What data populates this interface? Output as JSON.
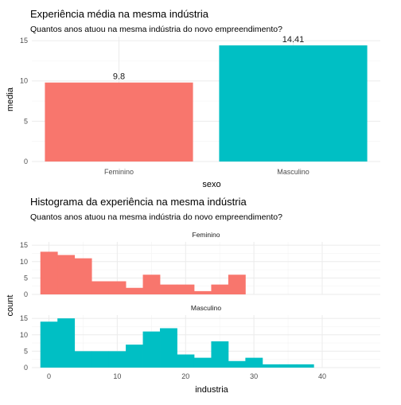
{
  "colors": {
    "feminino": "#F8766D",
    "masculino": "#00BFC4"
  },
  "chart_data": [
    {
      "type": "bar",
      "title": "Experiência média na mesma indústria",
      "subtitle": "Quantos anos atuou na mesma indústria do novo empreendimento?",
      "xlabel": "sexo",
      "ylabel": "media",
      "categories": [
        "Feminino",
        "Masculino"
      ],
      "values": [
        9.8,
        14.41
      ],
      "data_labels": [
        "9.8",
        "14.41"
      ],
      "ylim": [
        0,
        15.5
      ],
      "yticks": [
        0,
        5,
        10,
        15
      ],
      "ytick_labels": [
        "0",
        "5",
        "10",
        "15"
      ],
      "grid": true,
      "legend": "none"
    },
    {
      "type": "bar",
      "subtype": "histogram",
      "title": "Histograma da experiência na mesma indústria",
      "subtitle": "Quantos anos atuou na mesma indústria do novo empreendimento?",
      "xlabel": "industria",
      "ylabel": "count",
      "binwidth": 2.5,
      "xlim": [
        -2.5,
        48.5
      ],
      "xticks": [
        0,
        10,
        20,
        30,
        40
      ],
      "xtick_labels": [
        "0",
        "10",
        "20",
        "30",
        "40"
      ],
      "ylim": [
        0,
        16
      ],
      "yticks": [
        0,
        5,
        10,
        15
      ],
      "ytick_labels": [
        "0",
        "5",
        "10",
        "15"
      ],
      "grid": true,
      "legend": "none",
      "facets": [
        {
          "label": "Feminino",
          "bins": [
            {
              "x0": -1.25,
              "count": 13
            },
            {
              "x0": 1.25,
              "count": 12
            },
            {
              "x0": 3.75,
              "count": 11
            },
            {
              "x0": 6.25,
              "count": 4
            },
            {
              "x0": 8.75,
              "count": 4
            },
            {
              "x0": 11.25,
              "count": 2
            },
            {
              "x0": 13.75,
              "count": 6
            },
            {
              "x0": 16.25,
              "count": 3
            },
            {
              "x0": 18.75,
              "count": 3
            },
            {
              "x0": 21.25,
              "count": 1
            },
            {
              "x0": 23.75,
              "count": 3
            },
            {
              "x0": 26.25,
              "count": 6
            }
          ]
        },
        {
          "label": "Masculino",
          "bins": [
            {
              "x0": -1.25,
              "count": 14
            },
            {
              "x0": 1.25,
              "count": 15
            },
            {
              "x0": 3.75,
              "count": 5
            },
            {
              "x0": 6.25,
              "count": 5
            },
            {
              "x0": 8.75,
              "count": 5
            },
            {
              "x0": 11.25,
              "count": 7
            },
            {
              "x0": 13.75,
              "count": 11
            },
            {
              "x0": 16.25,
              "count": 12
            },
            {
              "x0": 18.75,
              "count": 4
            },
            {
              "x0": 21.25,
              "count": 3
            },
            {
              "x0": 23.75,
              "count": 8
            },
            {
              "x0": 26.25,
              "count": 2
            },
            {
              "x0": 28.75,
              "count": 3
            },
            {
              "x0": 31.25,
              "count": 1
            },
            {
              "x0": 33.75,
              "count": 1
            },
            {
              "x0": 36.25,
              "count": 1
            }
          ]
        }
      ]
    }
  ]
}
